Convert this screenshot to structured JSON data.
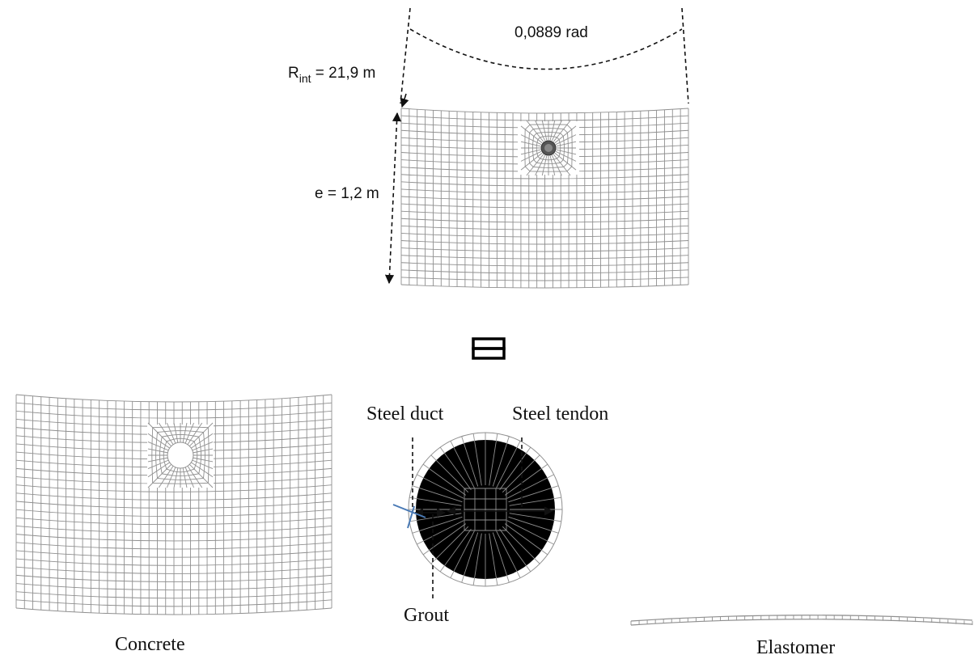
{
  "labels": {
    "angle": "0,0889 rad",
    "radius_main": "R",
    "radius_sub": "int",
    "radius_value": " = 21,9 m",
    "thickness": "e = 1,2 m",
    "steel_duct": "Steel duct",
    "steel_tendon": "Steel tendon",
    "grout": "Grout",
    "concrete": "Concrete",
    "elastomer": "Elastomer"
  },
  "icons": {
    "equivalence": "equals-boxes-icon"
  },
  "colors": {
    "mesh": "#8f8f8f",
    "annotation": "#111111",
    "duct_marker": "#4a7ab5"
  }
}
